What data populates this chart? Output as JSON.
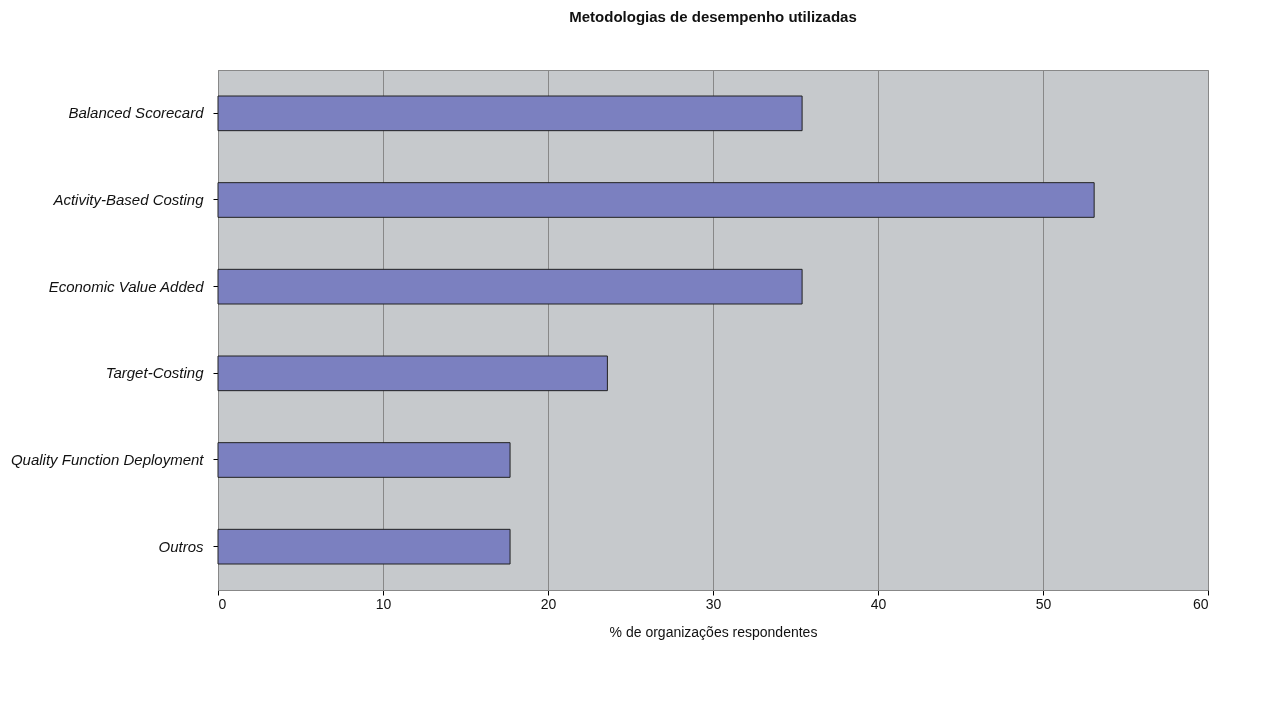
{
  "chart_data": {
    "type": "bar",
    "orientation": "horizontal",
    "title": "Metodologias de desempenho utilizadas",
    "xlabel": "% de organizações respondentes",
    "categories": [
      "Balanced Scorecard",
      "Activity-Based Costing",
      "Economic Value Added",
      "Target-Costing",
      "Quality Function Deployment",
      "Outros"
    ],
    "values": [
      35.4,
      53.1,
      35.4,
      23.6,
      17.7,
      17.7
    ],
    "color": "#7b80c0",
    "xlim": [
      0,
      60
    ],
    "xticks": [
      0,
      10,
      20,
      30,
      40,
      50,
      60
    ],
    "grid": "x"
  }
}
